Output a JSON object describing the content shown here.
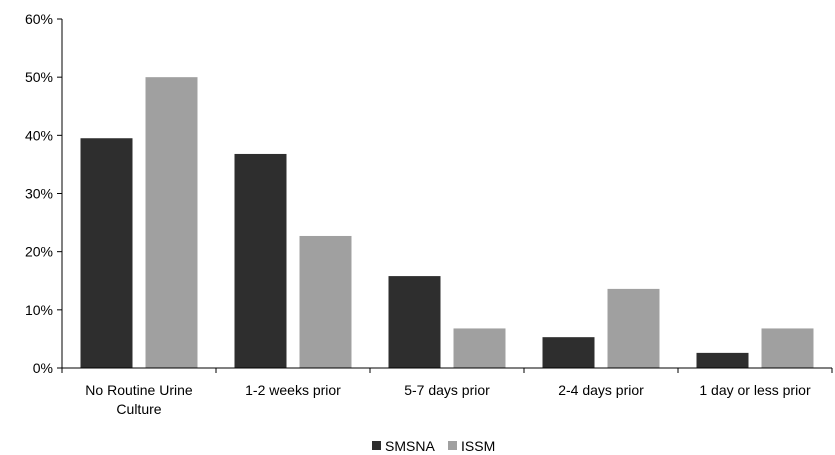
{
  "chart_data": {
    "type": "bar",
    "categories": [
      [
        "No Routine Urine",
        "Culture"
      ],
      [
        "1-2 weeks prior"
      ],
      [
        "5-7 days prior"
      ],
      [
        "2-4 days prior"
      ],
      [
        "1 day or less prior"
      ]
    ],
    "series": [
      {
        "name": "SMSNA",
        "values": [
          39.5,
          36.8,
          15.8,
          5.3,
          2.6
        ],
        "color": "#2e2e2e"
      },
      {
        "name": "ISSM",
        "values": [
          50.0,
          22.7,
          6.8,
          13.6,
          6.8
        ],
        "color": "#a0a0a0"
      }
    ],
    "y_ticks": [
      "0%",
      "10%",
      "20%",
      "30%",
      "40%",
      "50%",
      "60%"
    ],
    "ylim": [
      0,
      60
    ],
    "grid": false,
    "legend_position": "bottom-center"
  }
}
